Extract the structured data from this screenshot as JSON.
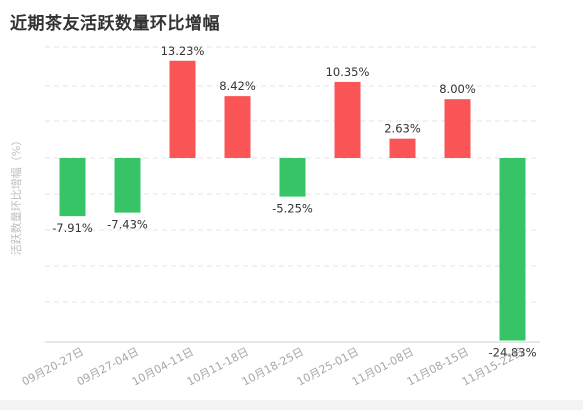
{
  "title": "近期茶友活跃数量环比增幅",
  "colors": {
    "positive": "#f95557",
    "negative": "#37c467"
  },
  "chart_data": {
    "type": "bar",
    "title": "近期茶友活跃数量环比增幅",
    "ylabel": "活跃数量环比增幅（%）",
    "xlabel": "",
    "categories": [
      "09月20-27日",
      "09月27-04日",
      "10月04-11日",
      "10月11-18日",
      "10月18-25日",
      "10月25-01日",
      "11月01-08日",
      "11月08-15日",
      "11月15-22日"
    ],
    "values": [
      -7.91,
      -7.43,
      13.23,
      8.42,
      -5.25,
      10.35,
      2.63,
      8.0,
      -24.83
    ],
    "value_labels": [
      "-7.91%",
      "-7.43%",
      "13.23%",
      "8.42%",
      "-5.25%",
      "10.35%",
      "2.63%",
      "8.00%",
      "-24.83%"
    ],
    "ylim": [
      -25,
      15
    ],
    "grid": true,
    "legend": "none"
  }
}
